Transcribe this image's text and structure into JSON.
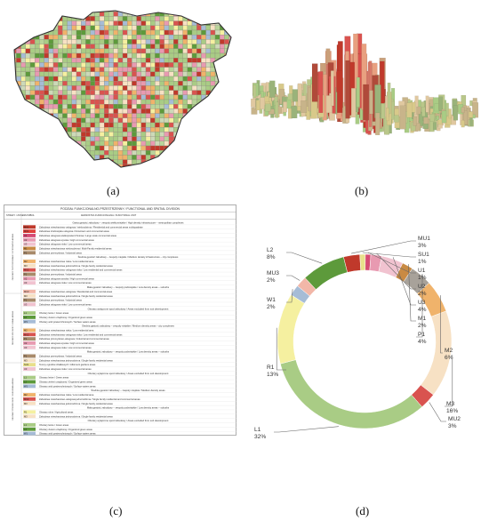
{
  "captions": {
    "a": "(a)",
    "b": "(b)",
    "c": "(c)",
    "d": "(d)"
  },
  "legend": {
    "title": "PODZIAŁ FUNKCJONALNO-PRZESTRZENNY / FUNCTIONAL AND SPATIAL DIVISION",
    "headers": {
      "zones": "STREFY / ZONES",
      "symbol": "SYMBOL",
      "unit": "JEDNOSTKA FUNKCJONALNA / FUNCTIONAL UNIT"
    },
    "side_labels": [
      "OBSZARY ZINTEGROWANE / INTEGRATED AREAS",
      "OBSZARY MIEJSKIE / URBAN AREAS",
      "OBSZARY PODMIEJSKIE / SUBURBAN AREAS"
    ],
    "rows": [
      {
        "kind": "section",
        "text": "Gęsta gęstość zabudowy – zespoły wielkomiejskie / High density infrastructure – metropolitan complexes"
      },
      {
        "kind": "unit",
        "code": "MU1",
        "color": "#c0392b",
        "text": "Zabudowa mieszkaniowo-usługowa / wielorodzinna / Residential and commercial areas multiquadrate"
      },
      {
        "kind": "unit",
        "code": "MU1",
        "color": "#e0413a",
        "text": "Zabudowa śródmiejska usługowa / Downtown and commercial areas"
      },
      {
        "kind": "unit",
        "code": "U1",
        "color": "#d64a73",
        "text": "Zabudowa usługowa wielkopowierzchniowa / Large scale commercial areas"
      },
      {
        "kind": "unit",
        "code": "U2",
        "color": "#e89ab1",
        "text": "Zabudowa usługowa wysoka / High commercial areas"
      },
      {
        "kind": "unit",
        "code": "U3",
        "color": "#f1c3d0",
        "text": "Zabudowa usługowa niska / Low commercial areas"
      },
      {
        "kind": "unit",
        "code": "M1",
        "color": "#c98a43",
        "text": "Zabudowa mieszkaniowa wielorodzinna / Multi-Family residential areas"
      },
      {
        "kind": "unit",
        "code": "P1",
        "color": "#a88a6a",
        "text": "Zabudowa przemysłowa / Industrial areas"
      },
      {
        "kind": "section",
        "text": "Średnia gęstość zabudowy – zespoły miejskie / Medium density infrastructure – city complexes"
      },
      {
        "kind": "unit",
        "code": "M2",
        "color": "#f0b36b",
        "text": "Zabudowa mieszkaniowa niska / Low residential area"
      },
      {
        "kind": "unit",
        "code": "M3",
        "color": "#f7e1c4",
        "text": "Zabudowa mieszkaniowa jednorodzinna / Single family residential areas"
      },
      {
        "kind": "unit",
        "code": "MU2",
        "color": "#d9534f",
        "text": "Zabudowa mieszkaniowo-usługowa niska / Low residential and commercial areas"
      },
      {
        "kind": "unit",
        "code": "P1",
        "color": "#a88a6a",
        "text": "Zabudowa przemysłowa / Industrial areas"
      },
      {
        "kind": "unit",
        "code": "U2",
        "color": "#e89ab1",
        "text": "Zabudowa usługowa wysoka / High commercial areas"
      },
      {
        "kind": "unit",
        "code": "U3",
        "color": "#f1c3d0",
        "text": "Zabudowa usługowa niska / Low commercial areas"
      },
      {
        "kind": "section",
        "text": "Mała gęstość zabudowy – zespoły podmiejskie / Low density areas – suburbs"
      },
      {
        "kind": "unit",
        "code": "MU3",
        "color": "#f2b7a8",
        "text": "Zabudowa mieszkaniowo-usługowa / Residential and commercial areas"
      },
      {
        "kind": "unit",
        "code": "M3",
        "color": "#f7e1c4",
        "text": "Zabudowa mieszkaniowa jednorodzinna / Single family residential areas"
      },
      {
        "kind": "unit",
        "code": "P1",
        "color": "#a88a6a",
        "text": "Zabudowa przemysłowa / Industrial areas"
      },
      {
        "kind": "unit",
        "code": "U3",
        "color": "#f1c3d0",
        "text": "Zabudowa usługowa niska / Low commercial areas"
      },
      {
        "kind": "section",
        "text": "Obszary wyłączone spod zabudowy / Areas excluded from sub development"
      },
      {
        "kind": "unit",
        "code": "L1",
        "color": "#a9cc85",
        "text": "Obszary leśne / Green areas"
      },
      {
        "kind": "unit",
        "code": "L2",
        "color": "#5d9a3b",
        "text": "Obszary zieleni urządzonej / Organized green areas"
      },
      {
        "kind": "unit",
        "code": "W1",
        "color": "#a6bcd6",
        "text": "Obszary wód powierzchniowych / Surface waters areas"
      },
      {
        "kind": "section",
        "text": "Średnia gęstość zabudowy – zespoły miejskie / Medium density areas – city complexes"
      },
      {
        "kind": "unit",
        "code": "M2",
        "color": "#f0b36b",
        "text": "Zabudowa mieszkaniowa niska / Low residential area"
      },
      {
        "kind": "unit",
        "code": "MU2",
        "color": "#d9534f",
        "text": "Zabudowa mieszkaniowo-usługowa niska / Low residential and commercial areas"
      },
      {
        "kind": "unit",
        "code": "P1",
        "color": "#a88a6a",
        "text": "Zabudowa przemysłowo-usługowa / Industrial and commercial areas"
      },
      {
        "kind": "unit",
        "code": "U2",
        "color": "#e89ab1",
        "text": "Zabudowa usługowa wysoka / High commercial areas"
      },
      {
        "kind": "unit",
        "code": "U3",
        "color": "#f1c3d0",
        "text": "Zabudowa usługowa niska / Low commercial areas"
      },
      {
        "kind": "section",
        "text": "Mała gęstość zabudowy – zespoły podmiejskie / Low density areas – suburbs"
      },
      {
        "kind": "unit",
        "code": "P1",
        "color": "#a88a6a",
        "text": "Zabudowa przemysłowa / Industrial areas"
      },
      {
        "kind": "unit",
        "code": "M3",
        "color": "#f7e1c4",
        "text": "Zabudowa mieszkaniowa jednorodzinna / Single family residential areas"
      },
      {
        "kind": "unit",
        "code": "SU1",
        "color": "#e8df8a",
        "text": "Tereny ogrodów działkowych / Allotment gardens areas"
      },
      {
        "kind": "unit",
        "code": "U3",
        "color": "#f1c3d0",
        "text": "Zabudowa usługowa niska / Low commercial areas"
      },
      {
        "kind": "section",
        "text": "Obszary wyłączone spod zabudowy / Areas excluded from sub development"
      },
      {
        "kind": "unit",
        "code": "L1",
        "color": "#a9cc85",
        "text": "Obszary leśne / Green areas"
      },
      {
        "kind": "unit",
        "code": "L2",
        "color": "#5d9a3b",
        "text": "Obszary zieleni urządzonej / Organized green areas"
      },
      {
        "kind": "unit",
        "code": "W1",
        "color": "#a6bcd6",
        "text": "Obszary wód powierzchniowych / Surface waters areas"
      },
      {
        "kind": "section",
        "text": "Średnia gęstość zabudowy – zespoły miejskie / Medium density areas"
      },
      {
        "kind": "unit",
        "code": "M2",
        "color": "#f0b36b",
        "text": "Zabudowa mieszkaniowa niska / Low residential area"
      },
      {
        "kind": "unit",
        "code": "MU2",
        "color": "#d9534f",
        "text": "Zabudowa mieszkaniowo-usługowa jednorodzinna / Single family residential and commercial areas"
      },
      {
        "kind": "unit",
        "code": "M3",
        "color": "#f7e1c4",
        "text": "Zabudowa mieszkaniowa jednorodzinna / Single family residential areas"
      },
      {
        "kind": "section",
        "text": "Mała gęstość zabudowy – zespoły podmiejskie / Low density areas – suburbs"
      },
      {
        "kind": "unit",
        "code": "R1",
        "color": "#f5f0a0",
        "text": "Obszary rolne / Agricultural areas"
      },
      {
        "kind": "unit",
        "code": "M3",
        "color": "#f7e1c4",
        "text": "Zabudowa mieszkaniowa jednorodzinna / Single family residential areas"
      },
      {
        "kind": "section",
        "text": "Obszary wyłączone spod zabudowy / Areas excluded from sub development"
      },
      {
        "kind": "unit",
        "code": "L1",
        "color": "#a9cc85",
        "text": "Obszary leśne / Green areas"
      },
      {
        "kind": "unit",
        "code": "L2",
        "color": "#5d9a3b",
        "text": "Obszary zieleni urządzonej / Organized green areas"
      },
      {
        "kind": "unit",
        "code": "W1",
        "color": "#a6bcd6",
        "text": "Obszary wód powierzchniowych / Surface waters areas"
      }
    ]
  },
  "chart_data": {
    "type": "pie",
    "style": "donut",
    "slices": [
      {
        "name": "MU1",
        "label": "3%",
        "value": 3,
        "color": "#c0392b"
      },
      {
        "name": "SU1",
        "label": "1%",
        "value": 1,
        "color": "#e8df8a"
      },
      {
        "name": "U1",
        "label": "1%",
        "value": 1,
        "color": "#d64a73"
      },
      {
        "name": "U2",
        "label": "2%",
        "value": 2,
        "color": "#e89ab1"
      },
      {
        "name": "U3",
        "label": "4%",
        "value": 4,
        "color": "#f1c3d0"
      },
      {
        "name": "M1",
        "label": "2%",
        "value": 2,
        "color": "#c98a43"
      },
      {
        "name": "P1",
        "label": "4%",
        "value": 4,
        "color": "#a8a29a"
      },
      {
        "name": "M2",
        "label": "6%",
        "value": 6,
        "color": "#f0b36b"
      },
      {
        "name": "M3",
        "label": "16%",
        "value": 16,
        "color": "#f7e1c4"
      },
      {
        "name": "MU2",
        "label": "3%",
        "value": 3,
        "color": "#d9534f"
      },
      {
        "name": "L1",
        "label": "32%",
        "value": 32,
        "color": "#a9cc85"
      },
      {
        "name": "R1",
        "label": "13%",
        "value": 13,
        "color": "#f5f0a0"
      },
      {
        "name": "W1",
        "label": "2%",
        "value": 2,
        "color": "#a6bcd6"
      },
      {
        "name": "MU3",
        "label": "2%",
        "value": 2,
        "color": "#f2b7a8"
      },
      {
        "name": "L2",
        "label": "8%",
        "value": 8,
        "color": "#5d9a3b"
      }
    ]
  }
}
